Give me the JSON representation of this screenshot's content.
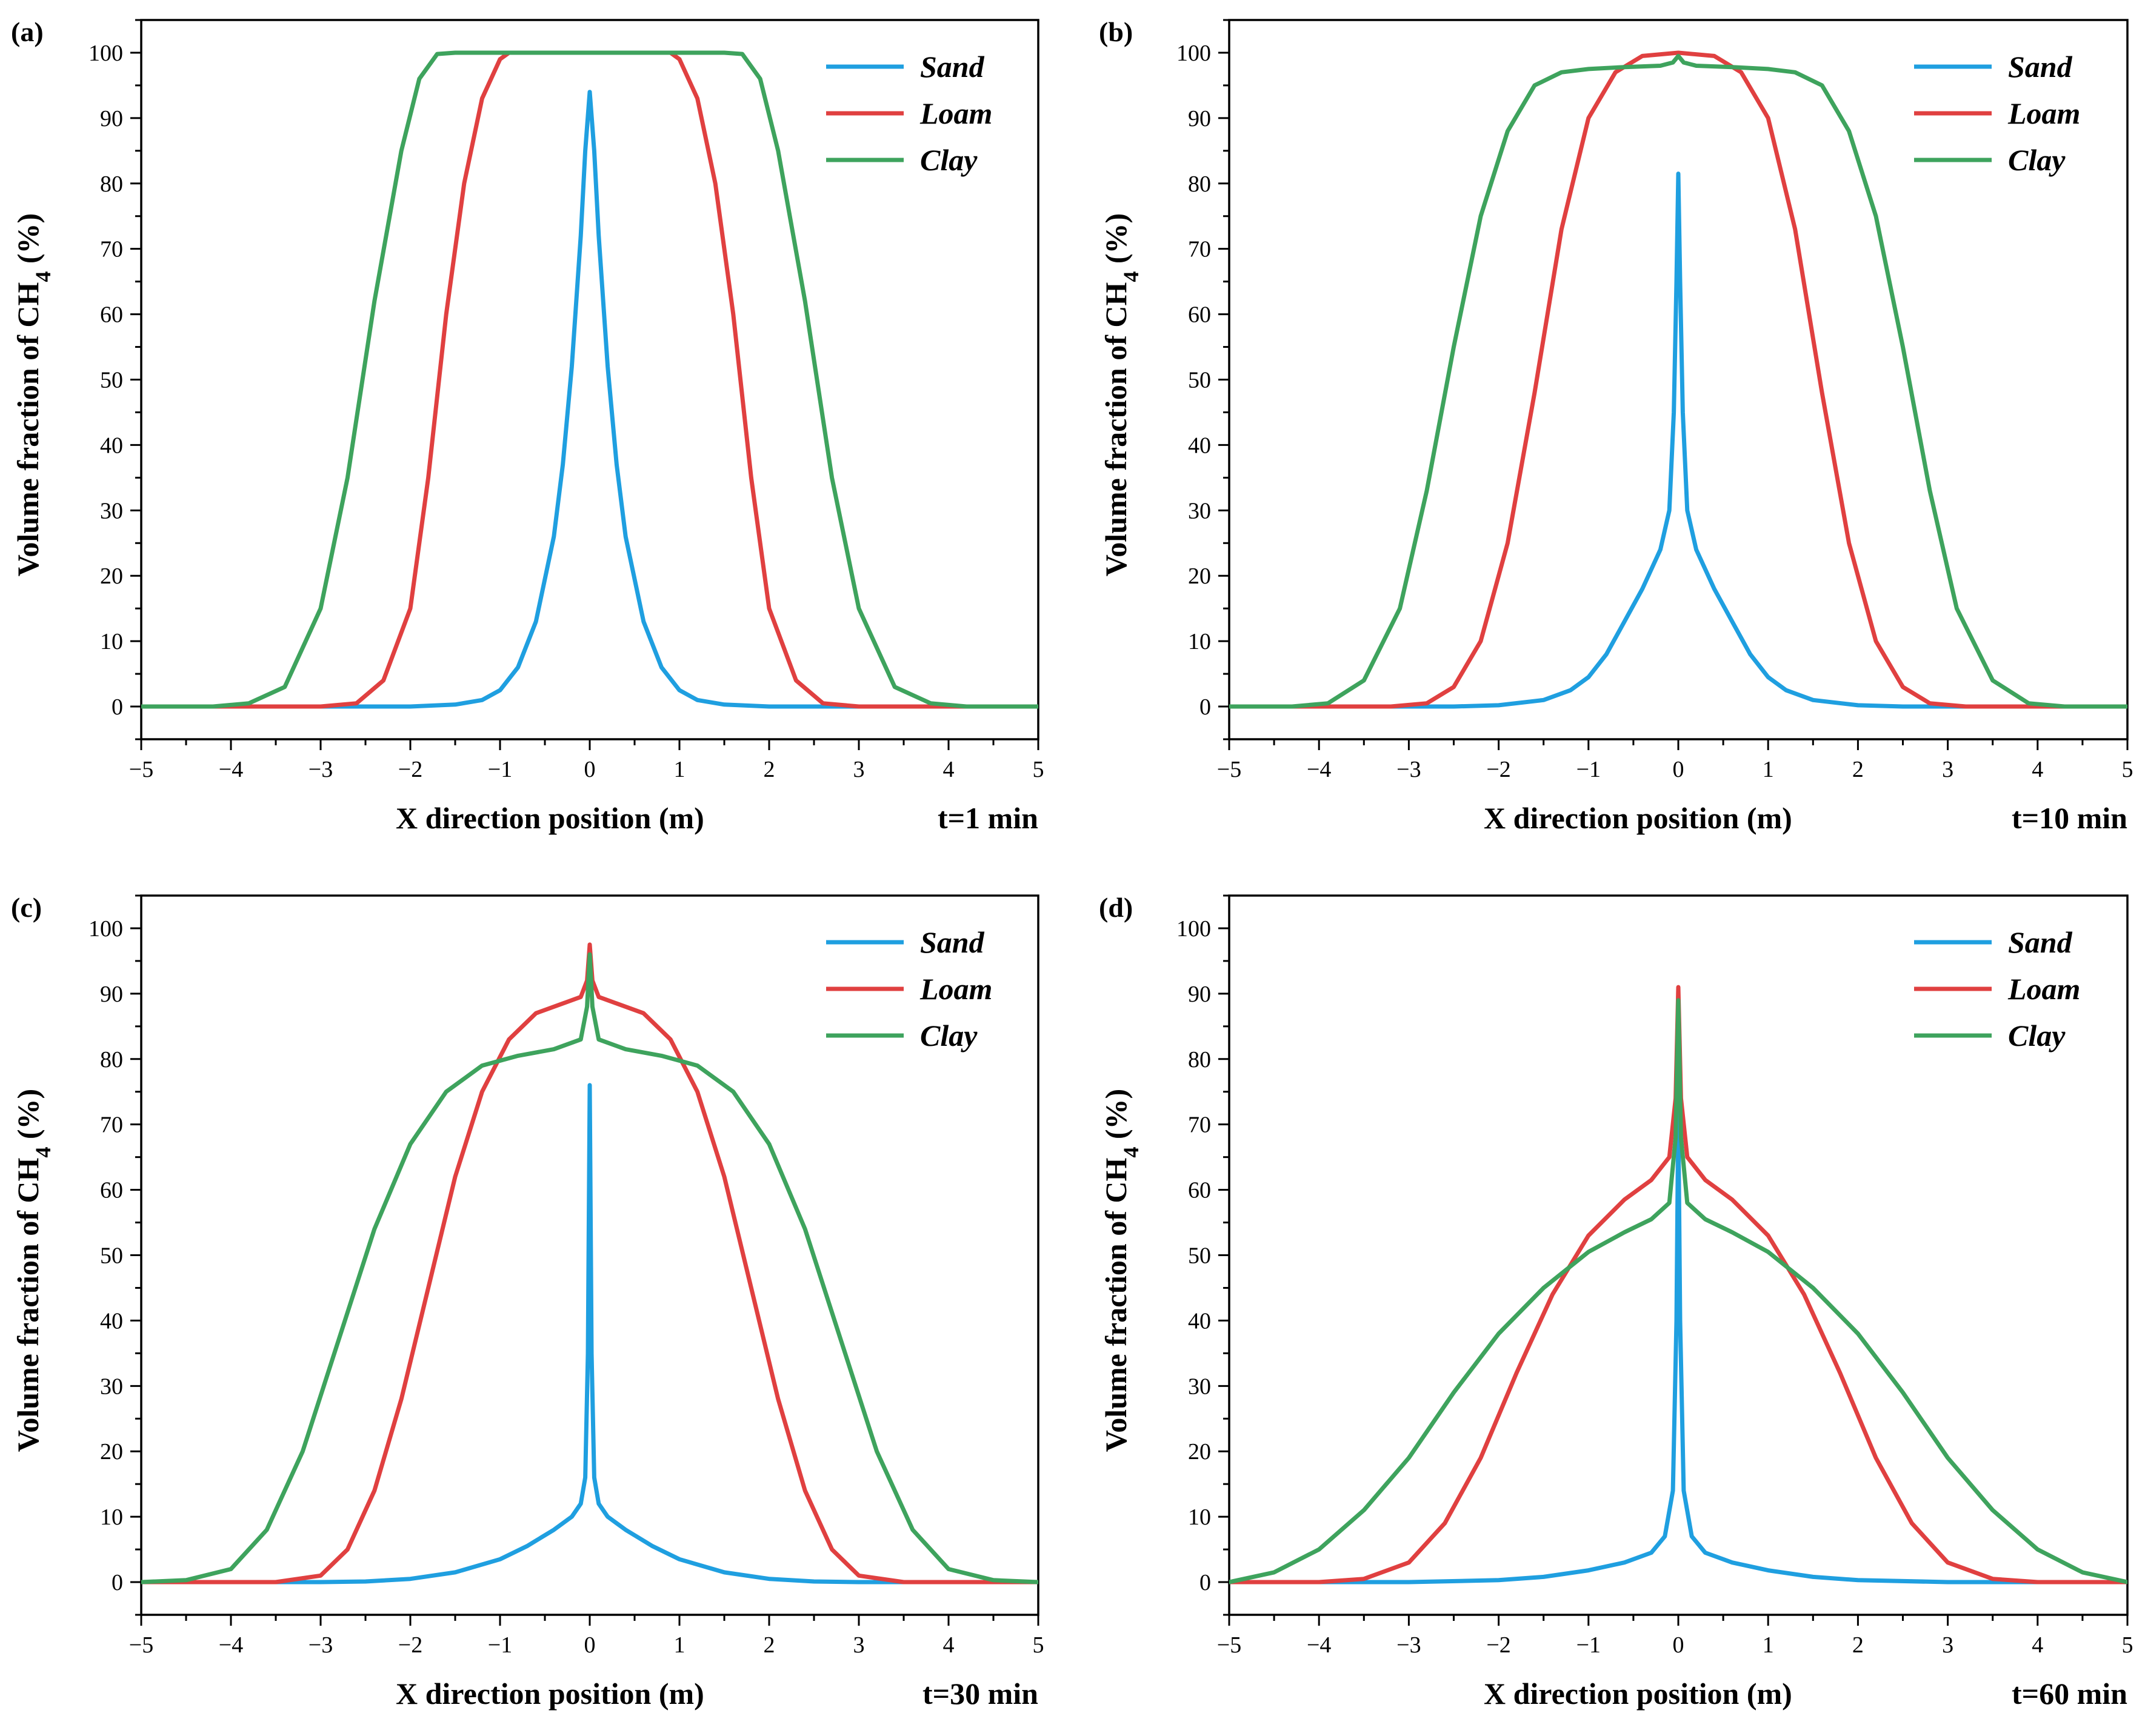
{
  "figure": {
    "type": "multi-panel line chart"
  },
  "chart_data": [
    {
      "type": "line",
      "panel": "(a)",
      "time_label": "t=1 min",
      "xlabel": "X direction position (m)",
      "ylabel_main": "Volume fraction of CH",
      "ylabel_sub": "4",
      "ylabel_unit": " (%)",
      "xlim": [
        -5,
        5
      ],
      "ylim": [
        -5,
        105
      ],
      "x_ticks": [
        "−5",
        "−4",
        "−3",
        "−2",
        "−1",
        "0",
        "1",
        "2",
        "3",
        "4",
        "5"
      ],
      "y_ticks": [
        "0",
        "10",
        "20",
        "30",
        "40",
        "50",
        "60",
        "70",
        "80",
        "90",
        "100"
      ],
      "legend": [
        "Sand",
        "Loam",
        "Clay"
      ],
      "series": [
        {
          "name": "Sand",
          "color": "#1f9fe0",
          "x": [
            -5,
            -2.5,
            -2,
            -1.5,
            -1.2,
            -1,
            -0.8,
            -0.6,
            -0.4,
            -0.3,
            -0.2,
            -0.1,
            -0.05,
            0,
            0.05,
            0.1,
            0.2,
            0.3,
            0.4,
            0.6,
            0.8,
            1,
            1.2,
            1.5,
            2,
            2.5,
            5
          ],
          "y": [
            0,
            0,
            0,
            0.3,
            1,
            2.5,
            6,
            13,
            26,
            37,
            52,
            72,
            85,
            94,
            85,
            72,
            52,
            37,
            26,
            13,
            6,
            2.5,
            1,
            0.3,
            0,
            0,
            0
          ]
        },
        {
          "name": "Loam",
          "color": "#e04040",
          "x": [
            -5,
            -3,
            -2.6,
            -2.3,
            -2.0,
            -1.8,
            -1.6,
            -1.4,
            -1.2,
            -1.0,
            -0.9,
            -0.8,
            0.8,
            0.9,
            1.0,
            1.2,
            1.4,
            1.6,
            1.8,
            2.0,
            2.3,
            2.6,
            3,
            5
          ],
          "y": [
            0,
            0,
            0.5,
            4,
            15,
            35,
            60,
            80,
            93,
            99,
            100,
            100,
            100,
            100,
            99,
            93,
            80,
            60,
            35,
            15,
            4,
            0.5,
            0,
            0
          ]
        },
        {
          "name": "Clay",
          "color": "#3ea35d",
          "x": [
            -5,
            -4.2,
            -3.8,
            -3.4,
            -3.0,
            -2.7,
            -2.4,
            -2.1,
            -1.9,
            -1.7,
            -1.5,
            1.5,
            1.7,
            1.9,
            2.1,
            2.4,
            2.7,
            3.0,
            3.4,
            3.8,
            4.2,
            5
          ],
          "y": [
            0,
            0,
            0.5,
            3,
            15,
            35,
            62,
            85,
            96,
            99.8,
            100,
            100,
            99.8,
            96,
            85,
            62,
            35,
            15,
            3,
            0.5,
            0,
            0
          ]
        }
      ]
    },
    {
      "type": "line",
      "panel": "(b)",
      "time_label": "t=10 min",
      "xlabel": "X direction position (m)",
      "ylabel_main": "Volume fraction of CH",
      "ylabel_sub": "4",
      "ylabel_unit": " (%)",
      "xlim": [
        -5,
        5
      ],
      "ylim": [
        -5,
        105
      ],
      "x_ticks": [
        "−5",
        "−4",
        "−3",
        "−2",
        "−1",
        "0",
        "1",
        "2",
        "3",
        "4",
        "5"
      ],
      "y_ticks": [
        "0",
        "10",
        "20",
        "30",
        "40",
        "50",
        "60",
        "70",
        "80",
        "90",
        "100"
      ],
      "legend": [
        "Sand",
        "Loam",
        "Clay"
      ],
      "series": [
        {
          "name": "Sand",
          "color": "#1f9fe0",
          "x": [
            -5,
            -2.5,
            -2,
            -1.5,
            -1.2,
            -1,
            -0.8,
            -0.6,
            -0.4,
            -0.2,
            -0.1,
            -0.05,
            -0.02,
            0,
            0.02,
            0.05,
            0.1,
            0.2,
            0.4,
            0.6,
            0.8,
            1,
            1.2,
            1.5,
            2,
            2.5,
            5
          ],
          "y": [
            0,
            0,
            0.2,
            1,
            2.5,
            4.5,
            8,
            13,
            18,
            24,
            30,
            45,
            65,
            81.5,
            65,
            45,
            30,
            24,
            18,
            13,
            8,
            4.5,
            2.5,
            1,
            0.2,
            0,
            0
          ]
        },
        {
          "name": "Loam",
          "color": "#e04040",
          "x": [
            -5,
            -3.2,
            -2.8,
            -2.5,
            -2.2,
            -1.9,
            -1.6,
            -1.3,
            -1.0,
            -0.7,
            -0.4,
            0,
            0.4,
            0.7,
            1.0,
            1.3,
            1.6,
            1.9,
            2.2,
            2.5,
            2.8,
            3.2,
            5
          ],
          "y": [
            0,
            0,
            0.5,
            3,
            10,
            25,
            48,
            73,
            90,
            97,
            99.5,
            100,
            99.5,
            97,
            90,
            73,
            48,
            25,
            10,
            3,
            0.5,
            0,
            0
          ]
        },
        {
          "name": "Clay",
          "color": "#3ea35d",
          "x": [
            -5,
            -4.3,
            -3.9,
            -3.5,
            -3.1,
            -2.8,
            -2.5,
            -2.2,
            -1.9,
            -1.6,
            -1.3,
            -1.0,
            -0.6,
            -0.2,
            -0.06,
            0,
            0.06,
            0.2,
            0.6,
            1.0,
            1.3,
            1.6,
            1.9,
            2.2,
            2.5,
            2.8,
            3.1,
            3.5,
            3.9,
            4.3,
            5
          ],
          "y": [
            0,
            0,
            0.5,
            4,
            15,
            33,
            55,
            75,
            88,
            95,
            97,
            97.5,
            97.8,
            98,
            98.5,
            99.5,
            98.5,
            98,
            97.8,
            97.5,
            97,
            95,
            88,
            75,
            55,
            33,
            15,
            4,
            0.5,
            0,
            0
          ]
        }
      ]
    },
    {
      "type": "line",
      "panel": "(c)",
      "time_label": "t=30 min",
      "xlabel": "X direction position (m)",
      "ylabel_main": "Volume fraction of CH",
      "ylabel_sub": "4",
      "ylabel_unit": " (%)",
      "xlim": [
        -5,
        5
      ],
      "ylim": [
        -5,
        105
      ],
      "x_ticks": [
        "−5",
        "−4",
        "−3",
        "−2",
        "−1",
        "0",
        "1",
        "2",
        "3",
        "4",
        "5"
      ],
      "y_ticks": [
        "0",
        "10",
        "20",
        "30",
        "40",
        "50",
        "60",
        "70",
        "80",
        "90",
        "100"
      ],
      "legend": [
        "Sand",
        "Loam",
        "Clay"
      ],
      "series": [
        {
          "name": "Sand",
          "color": "#1f9fe0",
          "x": [
            -5,
            -3,
            -2.5,
            -2,
            -1.5,
            -1,
            -0.7,
            -0.4,
            -0.2,
            -0.1,
            -0.05,
            -0.02,
            0,
            0.02,
            0.05,
            0.1,
            0.2,
            0.4,
            0.7,
            1,
            1.5,
            2,
            2.5,
            3,
            5
          ],
          "y": [
            0,
            0,
            0.1,
            0.5,
            1.5,
            3.5,
            5.5,
            8,
            10,
            12,
            16,
            35,
            76,
            35,
            16,
            12,
            10,
            8,
            5.5,
            3.5,
            1.5,
            0.5,
            0.1,
            0,
            0
          ]
        },
        {
          "name": "Loam",
          "color": "#e04040",
          "x": [
            -5,
            -3.5,
            -3.0,
            -2.7,
            -2.4,
            -2.1,
            -1.8,
            -1.5,
            -1.2,
            -0.9,
            -0.6,
            -0.3,
            -0.1,
            -0.03,
            0,
            0.03,
            0.1,
            0.3,
            0.6,
            0.9,
            1.2,
            1.5,
            1.8,
            2.1,
            2.4,
            2.7,
            3.0,
            3.5,
            5
          ],
          "y": [
            0,
            0,
            1,
            5,
            14,
            28,
            45,
            62,
            75,
            83,
            87,
            88.5,
            89.5,
            92,
            97.5,
            92,
            89.5,
            88.5,
            87,
            83,
            75,
            62,
            45,
            28,
            14,
            5,
            1,
            0,
            0
          ]
        },
        {
          "name": "Clay",
          "color": "#3ea35d",
          "x": [
            -5,
            -4.5,
            -4.0,
            -3.6,
            -3.2,
            -2.8,
            -2.4,
            -2.0,
            -1.6,
            -1.2,
            -0.8,
            -0.4,
            -0.1,
            -0.03,
            0,
            0.03,
            0.1,
            0.4,
            0.8,
            1.2,
            1.6,
            2.0,
            2.4,
            2.8,
            3.2,
            3.6,
            4.0,
            4.5,
            5
          ],
          "y": [
            0,
            0.3,
            2,
            8,
            20,
            37,
            54,
            67,
            75,
            79,
            80.5,
            81.5,
            83,
            88,
            96,
            88,
            83,
            81.5,
            80.5,
            79,
            75,
            67,
            54,
            37,
            20,
            8,
            2,
            0.3,
            0
          ]
        }
      ]
    },
    {
      "type": "line",
      "panel": "(d)",
      "time_label": "t=60 min",
      "xlabel": "X direction position (m)",
      "ylabel_main": "Volume fraction of CH",
      "ylabel_sub": "4",
      "ylabel_unit": " (%)",
      "xlim": [
        -5,
        5
      ],
      "ylim": [
        -5,
        105
      ],
      "x_ticks": [
        "−5",
        "−4",
        "−3",
        "−2",
        "−1",
        "0",
        "1",
        "2",
        "3",
        "4",
        "5"
      ],
      "y_ticks": [
        "0",
        "10",
        "20",
        "30",
        "40",
        "50",
        "60",
        "70",
        "80",
        "90",
        "100"
      ],
      "legend": [
        "Sand",
        "Loam",
        "Clay"
      ],
      "series": [
        {
          "name": "Sand",
          "color": "#1f9fe0",
          "x": [
            -5,
            -3,
            -2,
            -1.5,
            -1,
            -0.6,
            -0.3,
            -0.15,
            -0.06,
            -0.02,
            0,
            0.02,
            0.06,
            0.15,
            0.3,
            0.6,
            1,
            1.5,
            2,
            3,
            5
          ],
          "y": [
            0,
            0,
            0.3,
            0.8,
            1.8,
            3,
            4.5,
            7,
            14,
            40,
            72,
            40,
            14,
            7,
            4.5,
            3,
            1.8,
            0.8,
            0.3,
            0,
            0
          ]
        },
        {
          "name": "Loam",
          "color": "#e04040",
          "x": [
            -5,
            -4,
            -3.5,
            -3.0,
            -2.6,
            -2.2,
            -1.8,
            -1.4,
            -1.0,
            -0.6,
            -0.3,
            -0.1,
            -0.03,
            0,
            0.03,
            0.1,
            0.3,
            0.6,
            1.0,
            1.4,
            1.8,
            2.2,
            2.6,
            3.0,
            3.5,
            4,
            5
          ],
          "y": [
            0,
            0,
            0.5,
            3,
            9,
            19,
            32,
            44,
            53,
            58.5,
            61.5,
            65,
            74,
            91,
            74,
            65,
            61.5,
            58.5,
            53,
            44,
            32,
            19,
            9,
            3,
            0.5,
            0,
            0
          ]
        },
        {
          "name": "Clay",
          "color": "#3ea35d",
          "x": [
            -5,
            -4.5,
            -4.0,
            -3.5,
            -3.0,
            -2.5,
            -2.0,
            -1.5,
            -1.0,
            -0.6,
            -0.3,
            -0.1,
            -0.03,
            0,
            0.03,
            0.1,
            0.3,
            0.6,
            1.0,
            1.5,
            2.0,
            2.5,
            3.0,
            3.5,
            4.0,
            4.5,
            5
          ],
          "y": [
            0,
            1.5,
            5,
            11,
            19,
            29,
            38,
            45,
            50.5,
            53.5,
            55.5,
            58,
            68,
            89,
            68,
            58,
            55.5,
            53.5,
            50.5,
            45,
            38,
            29,
            19,
            11,
            5,
            1.5,
            0
          ]
        }
      ]
    }
  ]
}
